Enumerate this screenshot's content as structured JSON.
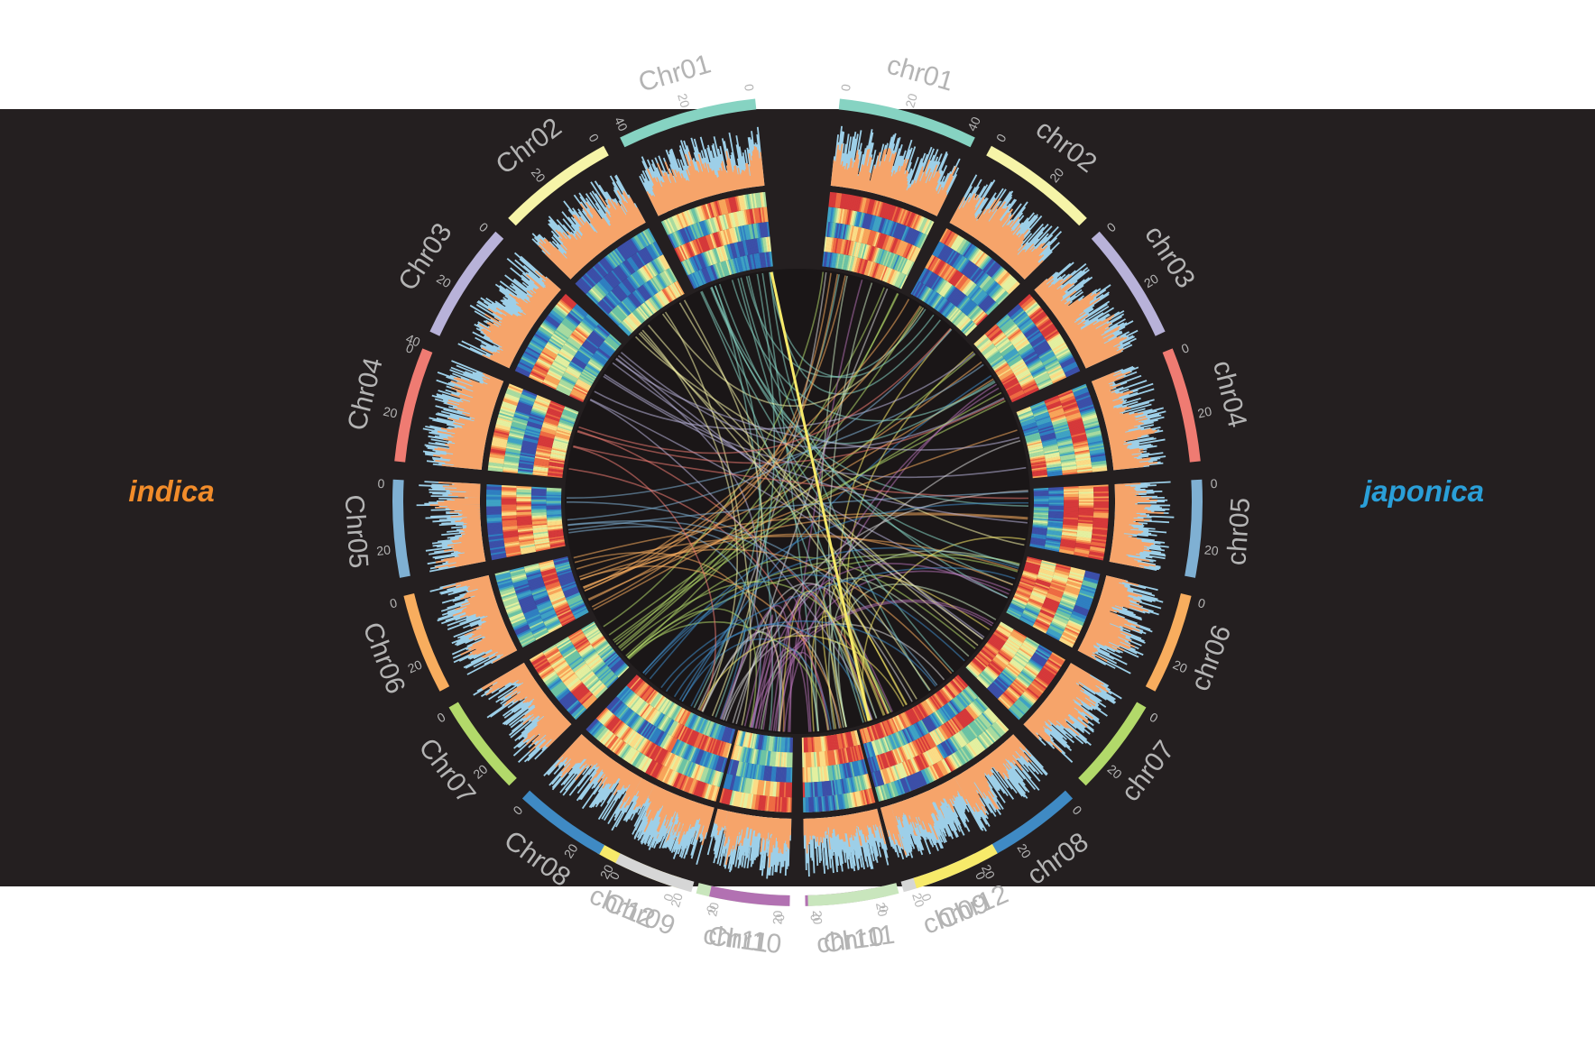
{
  "genomes": [
    {
      "name": "indica",
      "color": "#f28c2a"
    },
    {
      "name": "japonica",
      "color": "#2a9fd8"
    }
  ],
  "colors": {
    "background": "#241f20",
    "hist_orange": "#f6a46a",
    "hist_blue": "#9dcfe8",
    "labels": "#b4b4b4"
  },
  "indica_chromosomes": [
    {
      "name": "Chr01",
      "color": "#86d3c2",
      "ticks": [
        "0",
        "20",
        "40"
      ]
    },
    {
      "name": "Chr02",
      "color": "#f6f4a8",
      "ticks": [
        "0",
        "20"
      ]
    },
    {
      "name": "Chr03",
      "color": "#b8b2d9",
      "ticks": [
        "0",
        "20",
        "40"
      ]
    },
    {
      "name": "Chr04",
      "color": "#ef7b72",
      "ticks": [
        "0",
        "20"
      ]
    },
    {
      "name": "Chr05",
      "color": "#7fb0d3",
      "ticks": [
        "0",
        "20"
      ]
    },
    {
      "name": "Chr06",
      "color": "#f8ad5e",
      "ticks": [
        "0",
        "20"
      ]
    },
    {
      "name": "Chr07",
      "color": "#b2d96a",
      "ticks": [
        "0",
        "20"
      ]
    },
    {
      "name": "Chr08",
      "color": "#3f8ac4",
      "ticks": [
        "0",
        "20"
      ]
    },
    {
      "name": "Chr09",
      "color": "#d6d6d6",
      "ticks": [
        "0",
        "20"
      ]
    },
    {
      "name": "Chr10",
      "color": "#b271b2",
      "ticks": [
        "0",
        "20"
      ]
    },
    {
      "name": "Chr11",
      "color": "#c9e6bd",
      "ticks": [
        "0",
        "20"
      ]
    },
    {
      "name": "Chr12",
      "color": "#f7ea6a",
      "ticks": [
        "0",
        "20"
      ]
    }
  ],
  "japonica_chromosomes": [
    {
      "name": "chr01",
      "color": "#86d3c2",
      "ticks": [
        "0",
        "20",
        "40"
      ]
    },
    {
      "name": "chr02",
      "color": "#f6f4a8",
      "ticks": [
        "0",
        "20"
      ]
    },
    {
      "name": "chr03",
      "color": "#b8b2d9",
      "ticks": [
        "0",
        "20"
      ]
    },
    {
      "name": "chr04",
      "color": "#ef7b72",
      "ticks": [
        "0",
        "20"
      ]
    },
    {
      "name": "chr05",
      "color": "#7fb0d3",
      "ticks": [
        "0",
        "20"
      ]
    },
    {
      "name": "chr06",
      "color": "#f8ad5e",
      "ticks": [
        "0",
        "20"
      ]
    },
    {
      "name": "chr07",
      "color": "#b2d96a",
      "ticks": [
        "0",
        "20"
      ]
    },
    {
      "name": "chr08",
      "color": "#3f8ac4",
      "ticks": [
        "0",
        "20"
      ]
    },
    {
      "name": "chr09",
      "color": "#d6d6d6",
      "ticks": [
        "0",
        "20"
      ]
    },
    {
      "name": "chr10",
      "color": "#b271b2",
      "ticks": [
        "0",
        "20"
      ]
    },
    {
      "name": "chr11",
      "color": "#c9e6bd",
      "ticks": [
        "0",
        "20"
      ]
    },
    {
      "name": "chr12",
      "color": "#f7ea6a",
      "ticks": [
        "0",
        "20"
      ]
    }
  ],
  "heatmap_palette": [
    "#3c4fa8",
    "#2f7fc1",
    "#3fa2c4",
    "#6cc3a4",
    "#a8dba0",
    "#e4f0a0",
    "#fbdc86",
    "#f8a55a",
    "#ee6b43",
    "#d6393a"
  ]
}
